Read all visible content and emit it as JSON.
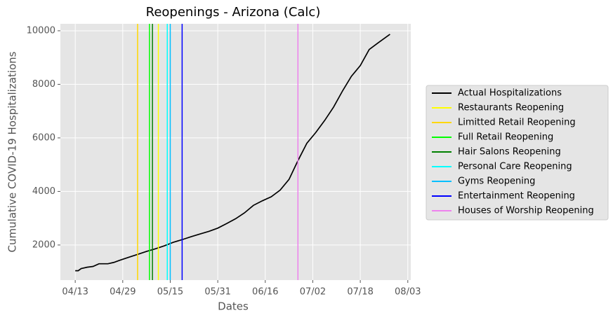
{
  "chart_data": {
    "type": "line",
    "title": "Reopenings - Arizona (Calc)",
    "xlabel": "Dates",
    "ylabel": "Cumulative COVID-19 Hospitalizations",
    "x": [
      "04/13",
      "04/14",
      "04/15",
      "04/17",
      "04/19",
      "04/21",
      "04/24",
      "04/26",
      "04/28",
      "05/01",
      "05/04",
      "05/07",
      "05/10",
      "05/13",
      "05/16",
      "05/19",
      "05/22",
      "05/25",
      "05/28",
      "05/31",
      "06/03",
      "06/06",
      "06/09",
      "06/12",
      "06/15",
      "06/18",
      "06/21",
      "06/24",
      "06/27",
      "06/30",
      "07/03",
      "07/06",
      "07/09",
      "07/12",
      "07/15",
      "07/18",
      "07/21",
      "07/24",
      "07/28"
    ],
    "series": [
      {
        "name": "Actual Hospitalizations",
        "color": "#000000",
        "values": [
          1040,
          1040,
          1120,
          1170,
          1200,
          1300,
          1300,
          1350,
          1430,
          1540,
          1650,
          1760,
          1860,
          1970,
          2100,
          2200,
          2310,
          2410,
          2510,
          2630,
          2800,
          2980,
          3200,
          3480,
          3650,
          3800,
          4050,
          4450,
          5150,
          5800,
          6200,
          6650,
          7150,
          7750,
          8300,
          8700,
          9300,
          9550,
          9870
        ]
      }
    ],
    "vlines": [
      {
        "name": "Restaurants Reopening",
        "color": "#ffff00",
        "x": "05/11"
      },
      {
        "name": "Limitted Retail Reopening",
        "color": "#ffd700",
        "x": "05/04"
      },
      {
        "name": "Full Retail Reopening",
        "color": "#00ff00",
        "x": "05/08"
      },
      {
        "name": "Hair Salons Reopening",
        "color": "#008000",
        "x": "05/09"
      },
      {
        "name": "Personal Care Reopening",
        "color": "#00ffff",
        "x": "05/14"
      },
      {
        "name": "Gyms Reopening",
        "color": "#00bfff",
        "x": "05/15"
      },
      {
        "name": "Entertainment Reopening",
        "color": "#0000ff",
        "x": "05/19"
      },
      {
        "name": "Houses of Worship Reopening",
        "color": "#ee82ee",
        "x": "06/27"
      }
    ],
    "xlim": [
      "04/08",
      "08/04"
    ],
    "xticks": [
      "04/13",
      "04/29",
      "05/15",
      "05/31",
      "06/16",
      "07/02",
      "07/18",
      "08/03"
    ],
    "ylim": [
      690,
      10260
    ],
    "yticks": [
      2000,
      4000,
      6000,
      8000,
      10000
    ],
    "grid": true
  }
}
